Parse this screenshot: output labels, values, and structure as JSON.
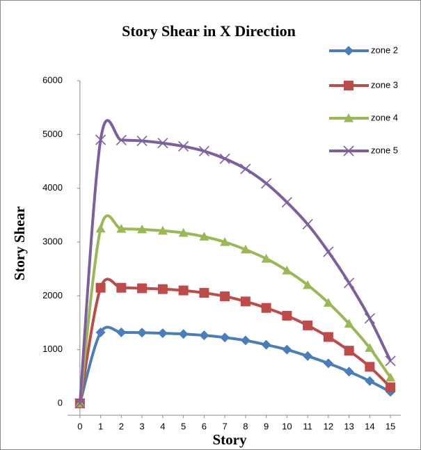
{
  "chart_data": {
    "type": "line",
    "title": "Story Shear in X Direction",
    "x_label": "Story",
    "y_label": "Story Shear",
    "x": [
      0,
      1,
      2,
      3,
      4,
      5,
      6,
      7,
      8,
      9,
      10,
      11,
      12,
      13,
      14,
      15
    ],
    "xlim": [
      -0.6,
      15.5
    ],
    "xticks": [
      0,
      1,
      2,
      3,
      4,
      5,
      6,
      7,
      8,
      9,
      10,
      11,
      12,
      13,
      14,
      15
    ],
    "ylim": [
      -220,
      6000
    ],
    "yticks": [
      0,
      1000,
      2000,
      3000,
      4000,
      5000,
      6000
    ],
    "smooth": true,
    "grid": false,
    "legend": "top-right",
    "series": [
      {
        "name": "zone 2",
        "color": "#4a7ebb",
        "marker": "diamond",
        "values": [
          0,
          1320,
          1320,
          1315,
          1305,
          1290,
          1265,
          1225,
          1170,
          1090,
          1000,
          880,
          745,
          590,
          415,
          215
        ]
      },
      {
        "name": "zone 3",
        "color": "#be4b48",
        "marker": "square",
        "values": [
          0,
          2150,
          2150,
          2140,
          2125,
          2100,
          2055,
          1990,
          1895,
          1775,
          1630,
          1450,
          1235,
          980,
          680,
          300
        ]
      },
      {
        "name": "zone 4",
        "color": "#98b954",
        "marker": "triangle",
        "values": [
          0,
          3250,
          3245,
          3235,
          3210,
          3170,
          3100,
          3000,
          2860,
          2690,
          2470,
          2200,
          1870,
          1480,
          1030,
          480
        ]
      },
      {
        "name": "zone 5",
        "color": "#7d5fa0",
        "marker": "x",
        "values": [
          0,
          4900,
          4895,
          4880,
          4840,
          4780,
          4690,
          4550,
          4360,
          4090,
          3740,
          3330,
          2820,
          2240,
          1580,
          790
        ]
      }
    ]
  }
}
